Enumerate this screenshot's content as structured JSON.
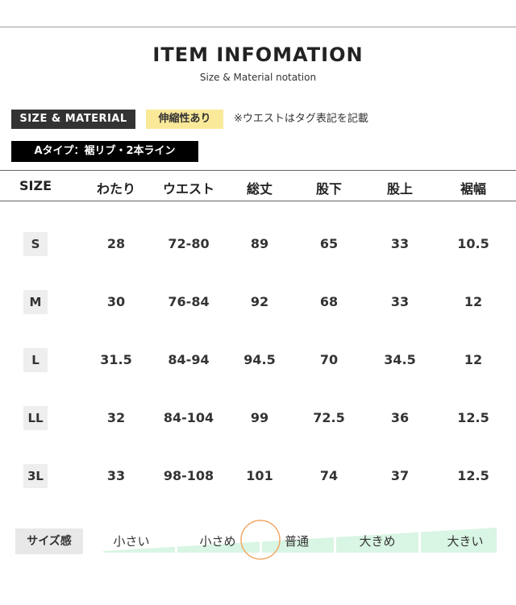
{
  "header": {
    "title": "ITEM INFOMATION",
    "subtitle": "Size & Material notation"
  },
  "tags": {
    "size_material": "SIZE & MATERIAL",
    "stretch": "伸縮性あり",
    "note": "※ウエストはタグ表記を記載",
    "type": "Aタイプ：裾リブ・2本ライン"
  },
  "table": {
    "columns": [
      "SIZE",
      "わたり",
      "ウエスト",
      "総丈",
      "股下",
      "股上",
      "裾幅"
    ],
    "rows": [
      [
        "S",
        "28",
        "72-80",
        "89",
        "65",
        "33",
        "10.5"
      ],
      [
        "M",
        "30",
        "76-84",
        "92",
        "68",
        "33",
        "12"
      ],
      [
        "L",
        "31.5",
        "84-94",
        "94.5",
        "70",
        "34.5",
        "12"
      ],
      [
        "LL",
        "32",
        "84-104",
        "99",
        "72.5",
        "36",
        "12.5"
      ],
      [
        "3L",
        "33",
        "98-108",
        "101",
        "74",
        "37",
        "12.5"
      ]
    ]
  },
  "fit": {
    "label": "サイズ感",
    "scale": [
      "小さい",
      "小さめ",
      "普通",
      "大きめ",
      "大きい"
    ],
    "selected_position": "between 小さめ and 普通",
    "ramp_color": "#d9f5e3",
    "marker_color": "#f0a868"
  }
}
